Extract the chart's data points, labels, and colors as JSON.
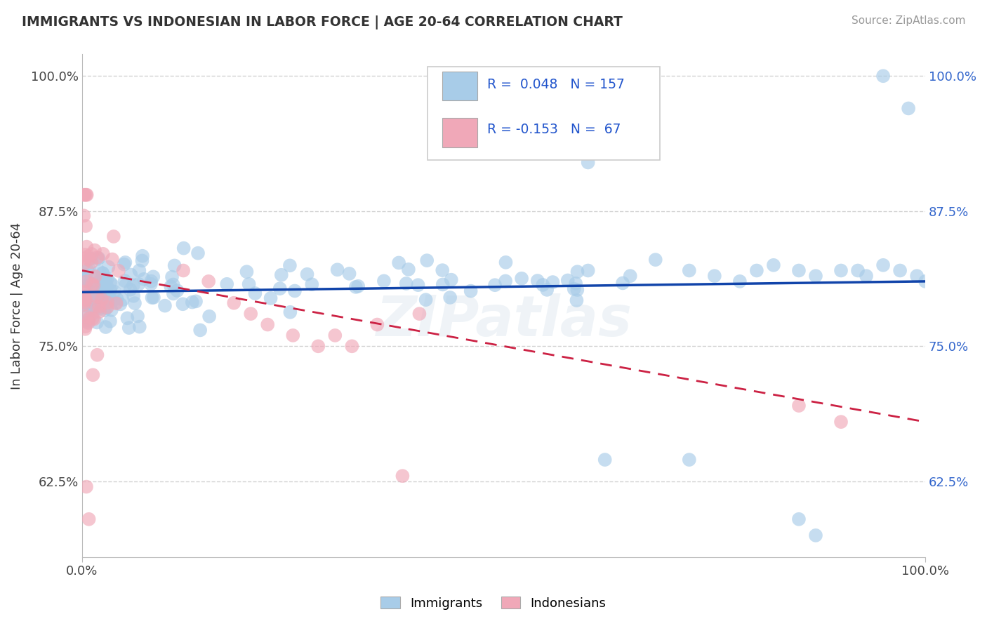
{
  "title": "IMMIGRANTS VS INDONESIAN IN LABOR FORCE | AGE 20-64 CORRELATION CHART",
  "source": "Source: ZipAtlas.com",
  "ylabel": "In Labor Force | Age 20-64",
  "xlim": [
    0.0,
    1.0
  ],
  "ylim": [
    0.555,
    1.02
  ],
  "yticks": [
    0.625,
    0.75,
    0.875,
    1.0
  ],
  "ytick_labels": [
    "62.5%",
    "75.0%",
    "87.5%",
    "100.0%"
  ],
  "xticks": [
    0.0,
    1.0
  ],
  "xtick_labels": [
    "0.0%",
    "100.0%"
  ],
  "legend_blue_label": "Immigrants",
  "legend_pink_label": "Indonesians",
  "R_blue": 0.048,
  "N_blue": 157,
  "R_pink": -0.153,
  "N_pink": 67,
  "blue_color": "#a8cce8",
  "pink_color": "#f0a8b8",
  "blue_line_color": "#1144aa",
  "pink_line_color": "#cc2244",
  "watermark": "ZIPatlas",
  "title_color": "#333333",
  "stat_color": "#2255cc",
  "right_tick_color": "#3366cc",
  "background_color": "#ffffff",
  "grid_color": "#cccccc",
  "blue_trend_start_y": 0.8,
  "blue_trend_end_y": 0.81,
  "pink_trend_start_y": 0.82,
  "pink_trend_end_y": 0.68
}
